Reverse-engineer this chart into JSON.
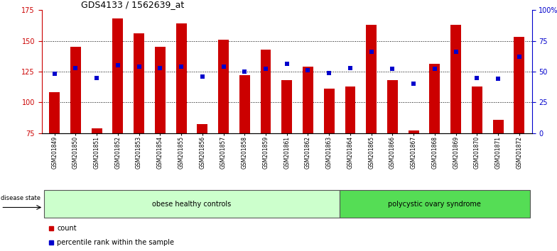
{
  "title": "GDS4133 / 1562639_at",
  "samples": [
    "GSM201849",
    "GSM201850",
    "GSM201851",
    "GSM201852",
    "GSM201853",
    "GSM201854",
    "GSM201855",
    "GSM201856",
    "GSM201857",
    "GSM201858",
    "GSM201859",
    "GSM201861",
    "GSM201862",
    "GSM201863",
    "GSM201864",
    "GSM201865",
    "GSM201866",
    "GSM201867",
    "GSM201868",
    "GSM201869",
    "GSM201870",
    "GSM201871",
    "GSM201872"
  ],
  "bar_values": [
    108,
    145,
    79,
    168,
    156,
    145,
    164,
    82,
    151,
    122,
    143,
    118,
    129,
    111,
    113,
    163,
    118,
    77,
    131,
    163,
    113,
    86,
    153
  ],
  "dot_values": [
    48,
    53,
    45,
    55,
    54,
    53,
    54,
    46,
    54,
    50,
    52,
    56,
    51,
    49,
    53,
    66,
    52,
    40,
    52,
    66,
    45,
    44,
    62
  ],
  "ylim_left": [
    75,
    175
  ],
  "ylim_right": [
    0,
    100
  ],
  "yticks_left": [
    75,
    100,
    125,
    150,
    175
  ],
  "yticks_right": [
    0,
    25,
    50,
    75,
    100
  ],
  "ytick_labels_right": [
    "0",
    "25",
    "50",
    "75",
    "100%"
  ],
  "bar_color": "#cc0000",
  "dot_color": "#0000cc",
  "group1_label": "obese healthy controls",
  "group2_label": "polycystic ovary syndrome",
  "group1_count": 14,
  "group2_count": 9,
  "disease_state_label": "disease state",
  "legend_count_label": "count",
  "legend_pct_label": "percentile rank within the sample",
  "background_color": "#ffffff",
  "plot_bg_color": "#ffffff",
  "group_bg_color1": "#ccffcc",
  "group_bg_color2": "#55dd55"
}
